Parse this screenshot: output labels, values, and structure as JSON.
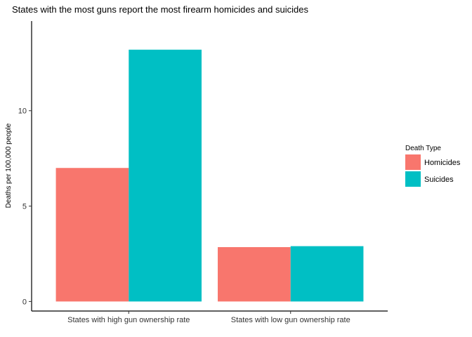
{
  "chart_data": {
    "type": "bar",
    "title": "States with the most guns report the most firearm homicides and suicides",
    "xlabel": "",
    "ylabel": "Deaths per 100,000 people",
    "categories": [
      "States with high gun ownership rate",
      "States with low gun ownership rate"
    ],
    "series": [
      {
        "name": "Homicides",
        "values": [
          7.0,
          2.85
        ],
        "color": "#F8766D"
      },
      {
        "name": "Suicides",
        "values": [
          13.2,
          2.9
        ],
        "color": "#00BFC4"
      }
    ],
    "yticks": [
      0,
      5,
      10
    ],
    "ylim": [
      -0.5,
      14.7
    ],
    "legend": {
      "title": "Death Type",
      "position": "right"
    },
    "grid": false
  }
}
